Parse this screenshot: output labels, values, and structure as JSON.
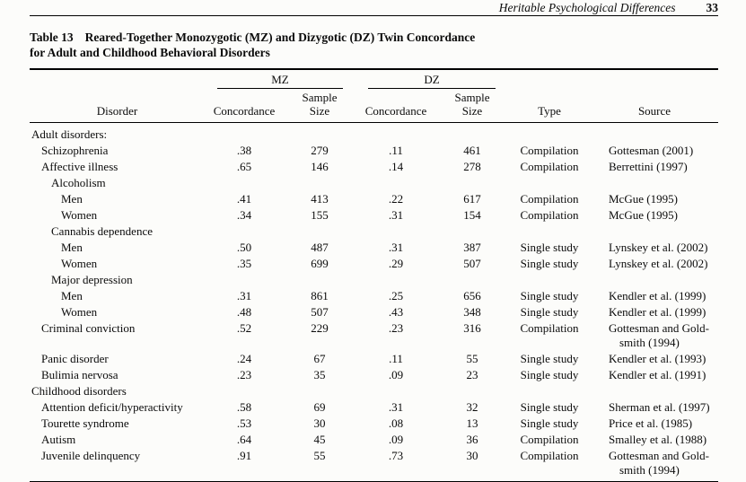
{
  "page": {
    "running_head": "Heritable Psychological Differences",
    "page_number": "33"
  },
  "table": {
    "label": "Table 13",
    "title_line1": "Reared-Together Monozygotic (MZ) and Dizygotic (DZ) Twin Concordance",
    "title_line2": "for Adult and Childhood Behavioral Disorders",
    "group_headers": {
      "mz": "MZ",
      "dz": "DZ"
    },
    "column_headers": {
      "disorder": "Disorder",
      "mz_concordance": "Concordance",
      "mz_sample_line1": "Sample",
      "mz_sample_line2": "Size",
      "dz_concordance": "Concordance",
      "dz_sample_line1": "Sample",
      "dz_sample_line2": "Size",
      "type": "Type",
      "source": "Source"
    },
    "rows": [
      {
        "indent": 0,
        "label": "Adult disorders:"
      },
      {
        "indent": 1,
        "label": "Schizophrenia",
        "mz_concordance": ".38",
        "mz_sample": "279",
        "dz_concordance": ".11",
        "dz_sample": "461",
        "type": "Compilation",
        "source": [
          "Gottesman (2001)"
        ]
      },
      {
        "indent": 1,
        "label": "Affective illness",
        "mz_concordance": ".65",
        "mz_sample": "146",
        "dz_concordance": ".14",
        "dz_sample": "278",
        "type": "Compilation",
        "source": [
          "Berrettini (1997)"
        ]
      },
      {
        "indent": 2,
        "label": "Alcoholism"
      },
      {
        "indent": 3,
        "label": "Men",
        "mz_concordance": ".41",
        "mz_sample": "413",
        "dz_concordance": ".22",
        "dz_sample": "617",
        "type": "Compilation",
        "source": [
          "McGue (1995)"
        ]
      },
      {
        "indent": 3,
        "label": "Women",
        "mz_concordance": ".34",
        "mz_sample": "155",
        "dz_concordance": ".31",
        "dz_sample": "154",
        "type": "Compilation",
        "source": [
          "McGue (1995)"
        ]
      },
      {
        "indent": 2,
        "label": "Cannabis dependence"
      },
      {
        "indent": 3,
        "label": "Men",
        "mz_concordance": ".50",
        "mz_sample": "487",
        "dz_concordance": ".31",
        "dz_sample": "387",
        "type": "Single study",
        "source": [
          "Lynskey et al. (2002)"
        ]
      },
      {
        "indent": 3,
        "label": "Women",
        "mz_concordance": ".35",
        "mz_sample": "699",
        "dz_concordance": ".29",
        "dz_sample": "507",
        "type": "Single study",
        "source": [
          "Lynskey et al. (2002)"
        ]
      },
      {
        "indent": 2,
        "label": "Major depression"
      },
      {
        "indent": 3,
        "label": "Men",
        "mz_concordance": ".31",
        "mz_sample": "861",
        "dz_concordance": ".25",
        "dz_sample": "656",
        "type": "Single study",
        "source": [
          "Kendler et al. (1999)"
        ]
      },
      {
        "indent": 3,
        "label": "Women",
        "mz_concordance": ".48",
        "mz_sample": "507",
        "dz_concordance": ".43",
        "dz_sample": "348",
        "type": "Single study",
        "source": [
          "Kendler et al. (1999)"
        ]
      },
      {
        "indent": 1,
        "label": "Criminal conviction",
        "mz_concordance": ".52",
        "mz_sample": "229",
        "dz_concordance": ".23",
        "dz_sample": "316",
        "type": "Compilation",
        "source": [
          "Gottesman and Gold-",
          "smith (1994)"
        ]
      },
      {
        "indent": 1,
        "label": "Panic disorder",
        "mz_concordance": ".24",
        "mz_sample": "67",
        "dz_concordance": ".11",
        "dz_sample": "55",
        "type": "Single study",
        "source": [
          "Kendler et al. (1993)"
        ]
      },
      {
        "indent": 1,
        "label": "Bulimia nervosa",
        "mz_concordance": ".23",
        "mz_sample": "35",
        "dz_concordance": ".09",
        "dz_sample": "23",
        "type": "Single study",
        "source": [
          "Kendler et al. (1991)"
        ]
      },
      {
        "indent": 0,
        "label": "Childhood disorders"
      },
      {
        "indent": 1,
        "label": "Attention deficit/hyperactivity",
        "mz_concordance": ".58",
        "mz_sample": "69",
        "dz_concordance": ".31",
        "dz_sample": "32",
        "type": "Single study",
        "source": [
          "Sherman et al. (1997)"
        ]
      },
      {
        "indent": 1,
        "label": "Tourette syndrome",
        "mz_concordance": ".53",
        "mz_sample": "30",
        "dz_concordance": ".08",
        "dz_sample": "13",
        "type": "Single study",
        "source": [
          "Price et al. (1985)"
        ]
      },
      {
        "indent": 1,
        "label": "Autism",
        "mz_concordance": ".64",
        "mz_sample": "45",
        "dz_concordance": ".09",
        "dz_sample": "36",
        "type": "Compilation",
        "source": [
          "Smalley et al. (1988)"
        ]
      },
      {
        "indent": 1,
        "label": "Juvenile delinquency",
        "mz_concordance": ".91",
        "mz_sample": "55",
        "dz_concordance": ".73",
        "dz_sample": "30",
        "type": "Compilation",
        "source": [
          "Gottesman and Gold-",
          "smith (1994)"
        ]
      }
    ]
  }
}
